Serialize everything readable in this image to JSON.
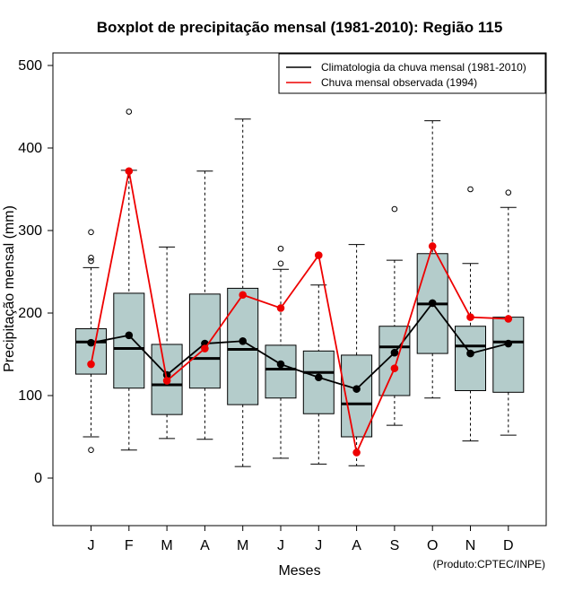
{
  "chart_data": {
    "type": "boxplot",
    "title": "Boxplot de precipitação mensal (1981-2010): Região 115",
    "xlabel": "Meses",
    "ylabel": "Precipitação mensal (mm)",
    "ylim": [
      -60,
      515
    ],
    "yticks": [
      0,
      100,
      200,
      300,
      400,
      500
    ],
    "categories": [
      "J",
      "F",
      "M",
      "A",
      "M",
      "J",
      "J",
      "A",
      "S",
      "O",
      "N",
      "D"
    ],
    "boxes": [
      {
        "min": 50,
        "q1": 126,
        "median": 165,
        "q3": 181,
        "max": 255,
        "outliers": [
          34,
          263,
          267,
          298
        ]
      },
      {
        "min": 34,
        "q1": 109,
        "median": 157,
        "q3": 224,
        "max": 373,
        "outliers": [
          444
        ]
      },
      {
        "min": 48,
        "q1": 77,
        "median": 113,
        "q3": 162,
        "max": 280,
        "outliers": []
      },
      {
        "min": 47,
        "q1": 109,
        "median": 145,
        "q3": 223,
        "max": 372,
        "outliers": []
      },
      {
        "min": 14,
        "q1": 89,
        "median": 156,
        "q3": 230,
        "max": 435,
        "outliers": []
      },
      {
        "min": 24,
        "q1": 97,
        "median": 132,
        "q3": 161,
        "max": 253,
        "outliers": [
          260,
          278
        ]
      },
      {
        "min": 17,
        "q1": 78,
        "median": 128,
        "q3": 154,
        "max": 234,
        "outliers": []
      },
      {
        "min": 15,
        "q1": 50,
        "median": 90,
        "q3": 149,
        "max": 283,
        "outliers": []
      },
      {
        "min": 64,
        "q1": 100,
        "median": 159,
        "q3": 184,
        "max": 264,
        "outliers": [
          326
        ]
      },
      {
        "min": 97,
        "q1": 151,
        "median": 211,
        "q3": 272,
        "max": 433,
        "outliers": []
      },
      {
        "min": 45,
        "q1": 106,
        "median": 160,
        "q3": 184,
        "max": 260,
        "outliers": [
          350
        ]
      },
      {
        "min": 52,
        "q1": 104,
        "median": 165,
        "q3": 195,
        "max": 328,
        "outliers": [
          346
        ]
      }
    ],
    "series": [
      {
        "name": "Climatologia da chuva mensal (1981-2010)",
        "color": "#000000",
        "values": [
          164,
          173,
          125,
          163,
          166,
          138,
          122,
          108,
          152,
          212,
          151,
          163
        ]
      },
      {
        "name": "Chuva mensal observada (1994)",
        "color": "#ee0000",
        "values": [
          138,
          372,
          118,
          157,
          222,
          206,
          270,
          31,
          133,
          281,
          195,
          193
        ]
      }
    ],
    "legend_position": "top-right",
    "box_color": "#b4cccb",
    "credit": "(Produto:CPTEC/INPE)"
  }
}
